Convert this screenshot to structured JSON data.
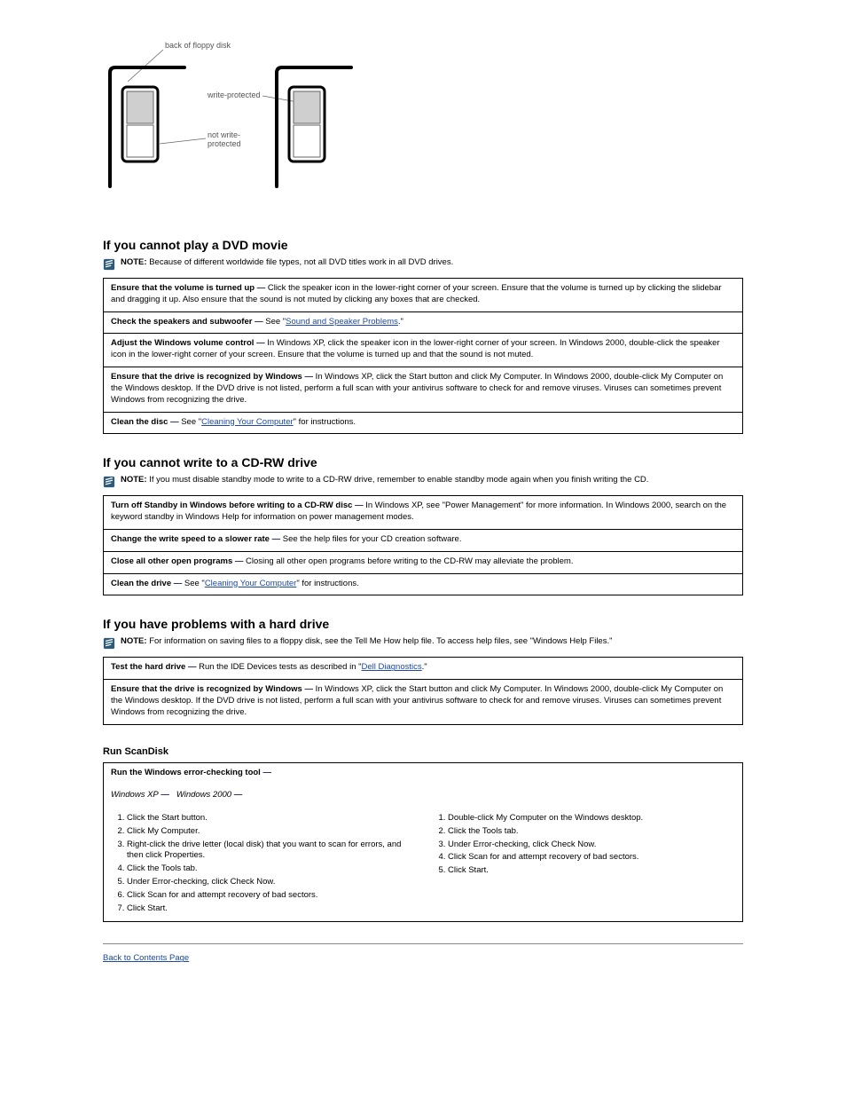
{
  "diagram": {
    "label_back": "back of floppy disk",
    "label_wp": "write-protected",
    "label_nwp": "not write-\nprotected",
    "colors": {
      "outline": "#000000",
      "tab_open": "#cfcfcf",
      "tab_closed": "#ffffff",
      "leader": "#666666",
      "label_font": "#555555"
    },
    "label_fontsize": 9
  },
  "sections": {
    "floppy": {
      "heading": "If you cannot play a DVD movie",
      "note_prefix": "NOTE:",
      "note_body": "Because of different worldwide file types, not all DVD titles work in all DVD drives.",
      "rows": [
        {
          "lead": "Ensure that the volume is turned up",
          "dash": "—",
          "body": "Click the speaker icon in the lower-right corner of your screen. Ensure that the volume is turned up by clicking the slidebar and dragging it up. Also ensure that the sound is not muted by clicking any boxes that are checked."
        },
        {
          "lead": "Check the speakers and subwoofer",
          "dash": "—",
          "body_pre": "See \"",
          "link": "Sound and Speaker Problems",
          "body_post": ".\""
        },
        {
          "lead": "Adjust the Windows volume control",
          "dash": "—",
          "body": "In Windows XP, click the speaker icon in the lower-right corner of your screen. In Windows 2000, double-click the speaker icon in the lower-right corner of your screen. Ensure that the volume is turned up and that the sound is not muted."
        },
        {
          "lead": "Ensure that the drive is recognized by Windows",
          "dash": "—",
          "body": "In Windows XP, click the Start button and click My Computer. In Windows 2000, double-click My Computer on the Windows desktop. If the DVD drive is not listed, perform a full scan with your antivirus software to check for and remove viruses. Viruses can sometimes prevent Windows from recognizing the drive."
        },
        {
          "lead": "Clean the disc",
          "dash": "—",
          "body_pre": "See \"",
          "link": "Cleaning Your Computer",
          "body_post": "\" for instructions."
        }
      ]
    },
    "cdrw": {
      "heading": "If you cannot write to a CD-RW drive",
      "note_prefix": "NOTE:",
      "note_body": "If you must disable standby mode to write to a CD-RW drive, remember to enable standby mode again when you finish writing the CD.",
      "rows": [
        {
          "lead": "Turn off Standby in Windows before writing to a CD-RW disc",
          "dash": "—",
          "body": "In Windows XP, see \"Power Management\" for more information. In Windows 2000, search on the keyword standby in Windows Help for information on power management modes."
        },
        {
          "lead": "Change the write speed to a slower rate",
          "dash": "—",
          "body": "See the help files for your CD creation software."
        },
        {
          "lead": "Close all other open programs",
          "dash": "—",
          "body": "Closing all other open programs before writing to the CD-RW may alleviate the problem."
        },
        {
          "lead": "Clean the drive",
          "dash": "—",
          "body_pre": "See \"",
          "link": "Cleaning Your Computer",
          "body_post": "\" for instructions."
        }
      ]
    },
    "hdd": {
      "heading": "If you have problems with a hard drive",
      "note_prefix": "NOTE:",
      "note_body": "For information on saving files to a floppy disk, see the Tell Me How help file. To access help files, see \"Windows Help Files.\"",
      "rows": [
        {
          "lead": "Test the hard drive",
          "dash": "—",
          "body_pre": "Run the IDE Devices tests as described in \"",
          "link": "Dell Diagnostics",
          "body_post": ".\""
        },
        {
          "lead": "Ensure that the drive is recognized by Windows",
          "dash": "—",
          "body": "In Windows XP, click the Start button and click My Computer. In Windows 2000, double-click My Computer on the Windows desktop. If the DVD drive is not listed, perform a full scan with your antivirus software to check for and remove viruses. Viruses can sometimes prevent Windows from recognizing the drive."
        }
      ]
    },
    "scandisk": {
      "subheading": "Run ScanDisk",
      "rows": [
        {
          "lead": "Run the Windows error-checking tool",
          "dash": "—",
          "steps_header_xp": "Windows XP",
          "dash2": "—",
          "steps_header_2k": "Windows 2000",
          "dash3": "—",
          "xp_steps": [
            "Click the Start button.",
            "Click My Computer.",
            "Right-click the drive letter (local disk) that you want to scan for errors, and then click Properties.",
            "Click the Tools tab.",
            "Under Error-checking, click Check Now.",
            "Click Scan for and attempt recovery of bad sectors.",
            "Click Start."
          ],
          "w2k_steps": [
            "Double-click My Computer on the Windows desktop.",
            "Click the Tools tab.",
            "Under Error-checking, click Check Now.",
            "Click Scan for and attempt recovery of bad sectors.",
            "Click Start."
          ]
        }
      ]
    }
  },
  "footer_link": "Back to Contents Page"
}
